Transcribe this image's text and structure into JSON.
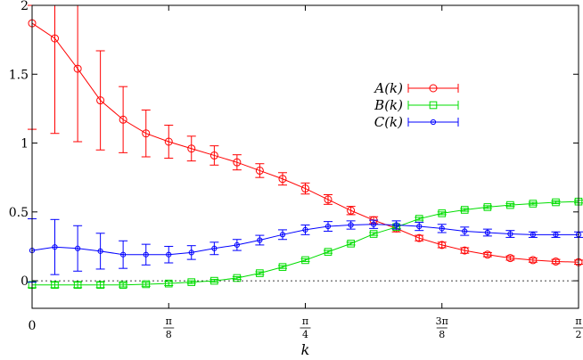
{
  "chart_data": {
    "type": "line",
    "xlabel": "k",
    "x_ticks": [
      {
        "value": 0,
        "label": "0"
      },
      {
        "value": 0.125,
        "num": "π",
        "den": "8"
      },
      {
        "value": 0.25,
        "num": "π",
        "den": "4"
      },
      {
        "value": 0.375,
        "num": "3π",
        "den": "8"
      },
      {
        "value": 0.5,
        "num": "π",
        "den": "2"
      }
    ],
    "x_unit": "π",
    "xlim": [
      0,
      0.5
    ],
    "ylim": [
      -0.2,
      2
    ],
    "y_ticks": [
      "0",
      "0.5",
      "1",
      "1.5",
      "2"
    ],
    "y_tick_values": [
      0,
      0.5,
      1,
      1.5,
      2
    ],
    "zero_line": true,
    "legend_position": "upper-right",
    "x": [
      0,
      0.0208,
      0.0417,
      0.0625,
      0.0833,
      0.1042,
      0.125,
      0.1458,
      0.1667,
      0.1875,
      0.2083,
      0.2292,
      0.25,
      0.2708,
      0.2917,
      0.3125,
      0.3333,
      0.3542,
      0.375,
      0.3958,
      0.4167,
      0.4375,
      0.4583,
      0.4792,
      0.5
    ],
    "series": [
      {
        "name": "A(k)",
        "marker": "circle",
        "color": "#ff0000",
        "values": [
          1.87,
          1.76,
          1.54,
          1.31,
          1.17,
          1.07,
          1.01,
          0.96,
          0.91,
          0.86,
          0.8,
          0.74,
          0.67,
          0.59,
          0.51,
          0.44,
          0.38,
          0.31,
          0.26,
          0.22,
          0.19,
          0.165,
          0.15,
          0.14,
          0.135
        ],
        "errors": [
          0.77,
          0.69,
          0.53,
          0.36,
          0.24,
          0.17,
          0.12,
          0.09,
          0.07,
          0.055,
          0.05,
          0.045,
          0.04,
          0.035,
          0.03,
          0.025,
          0.025,
          0.02,
          0.02,
          0.02,
          0.015,
          0.015,
          0.015,
          0.015,
          0.015
        ]
      },
      {
        "name": "B(k)",
        "marker": "square",
        "color": "#00dd00",
        "values": [
          -0.03,
          -0.03,
          -0.03,
          -0.03,
          -0.03,
          -0.025,
          -0.02,
          -0.01,
          0.0,
          0.02,
          0.055,
          0.1,
          0.15,
          0.21,
          0.27,
          0.34,
          0.39,
          0.45,
          0.49,
          0.515,
          0.535,
          0.55,
          0.56,
          0.57,
          0.575
        ],
        "errors": [
          0.02,
          0.02,
          0.02,
          0.02,
          0.015,
          0.015,
          0.015,
          0.01,
          0.01,
          0.01,
          0.01,
          0.01,
          0.01,
          0.01,
          0.01,
          0.01,
          0.01,
          0.01,
          0.01,
          0.01,
          0.01,
          0.01,
          0.01,
          0.01,
          0.01
        ]
      },
      {
        "name": "C(k)",
        "marker": "dot",
        "color": "#0000ff",
        "values": [
          0.22,
          0.245,
          0.235,
          0.215,
          0.19,
          0.19,
          0.19,
          0.205,
          0.235,
          0.26,
          0.295,
          0.335,
          0.37,
          0.395,
          0.405,
          0.41,
          0.405,
          0.395,
          0.38,
          0.36,
          0.35,
          0.34,
          0.335,
          0.335,
          0.335
        ],
        "errors": [
          0.23,
          0.2,
          0.165,
          0.13,
          0.1,
          0.075,
          0.06,
          0.05,
          0.045,
          0.04,
          0.035,
          0.035,
          0.035,
          0.035,
          0.03,
          0.03,
          0.03,
          0.03,
          0.03,
          0.03,
          0.025,
          0.025,
          0.02,
          0.02,
          0.02
        ]
      }
    ]
  }
}
